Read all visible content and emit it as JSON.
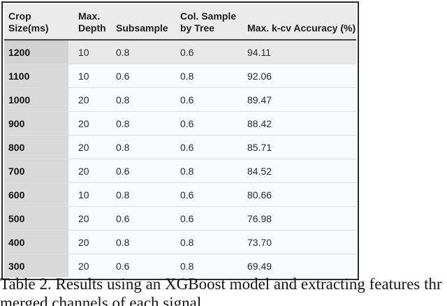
{
  "table": {
    "headers": [
      {
        "label": "Crop Size(ms)"
      },
      {
        "label": "Max.\nDepth"
      },
      {
        "label": "Subsample"
      },
      {
        "label": "Col. Sample\nby Tree"
      },
      {
        "label": "Max. k-cv Accuracy (%)"
      }
    ],
    "rows": [
      [
        "1200",
        "10",
        "0.8",
        "0.6",
        "94.11"
      ],
      [
        "1100",
        "10",
        "0.6",
        "0.8",
        "92.06"
      ],
      [
        "1000",
        "20",
        "0.8",
        "0.6",
        "89.47"
      ],
      [
        "900",
        "20",
        "0.8",
        "0.6",
        "88.42"
      ],
      [
        "800",
        "20",
        "0.8",
        "0.6",
        "85.71"
      ],
      [
        "700",
        "20",
        "0.6",
        "0.8",
        "84.52"
      ],
      [
        "600",
        "10",
        "0.8",
        "0.6",
        "80.66"
      ],
      [
        "500",
        "20",
        "0.6",
        "0.6",
        "76.98"
      ],
      [
        "400",
        "20",
        "0.8",
        "0.8",
        "73.70"
      ],
      [
        "300",
        "20",
        "0.6",
        "0.8",
        "69.49"
      ]
    ],
    "highlighted_row": "1200"
  },
  "caption": {
    "line1": "Table 2. Results using an XGBoost model and extracting features thr",
    "line2": "merged channels of each signal."
  },
  "colors": {
    "table_border": "#2d2d2d",
    "header_bg": "#ebebeb",
    "first_column_bg": "#d9d9d9",
    "row_bg": "#f9fafb",
    "highlight_row_bg": "#e8e8e8",
    "highlight_first_cell_bg": "#d2d2d2",
    "row_separator": "#dedede",
    "header_separator": "#454545"
  }
}
